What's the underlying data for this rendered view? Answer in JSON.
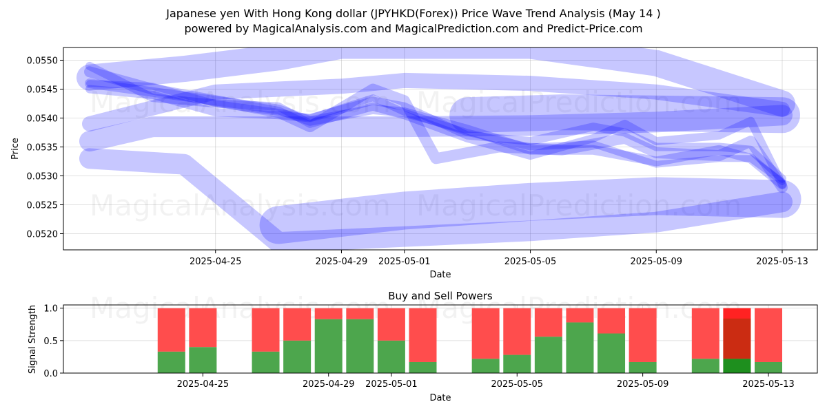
{
  "figure": {
    "title_line1": "Japanese yen With Hong Kong dollar (JPYHKD(Forex)) Price Wave Trend Analysis (May 14 )",
    "title_line2": "powered by MagicalAnalysis.com and MagicalPrediction.com and Predict-Price.com",
    "watermarks": [
      "MagicalAnalysis.com",
      "MagicalPrediction.com"
    ]
  },
  "chart_data": [
    {
      "type": "line",
      "name": "price-wave-chart",
      "xlabel": "Date",
      "ylabel": "Price",
      "xlim": [
        "2025-04-21",
        "2025-05-13"
      ],
      "ylim": [
        0.05172,
        0.05522
      ],
      "x_ticks": [
        "2025-04-25",
        "2025-04-29",
        "2025-05-01",
        "2025-05-05",
        "2025-05-09",
        "2025-05-13"
      ],
      "y_ticks": [
        "0.0520",
        "0.0525",
        "0.0530",
        "0.0535",
        "0.0540",
        "0.0545",
        "0.0550"
      ],
      "grid": true,
      "band_color": "#0000ff",
      "bands": [
        {
          "width": 30,
          "points": [
            [
              "2025-04-21",
              0.0536
            ],
            [
              "2025-04-23",
              0.05385
            ],
            [
              "2025-04-27",
              0.05385
            ],
            [
              "2025-05-01",
              0.05385
            ],
            [
              "2025-05-05",
              0.05387
            ],
            [
              "2025-05-09",
              0.05393
            ],
            [
              "2025-05-13",
              0.05405
            ]
          ]
        },
        {
          "width": 22,
          "points": [
            [
              "2025-04-21",
              0.0539
            ],
            [
              "2025-04-25",
              0.05445
            ],
            [
              "2025-04-29",
              0.05455
            ],
            [
              "2025-05-01",
              0.05465
            ],
            [
              "2025-05-05",
              0.0546
            ],
            [
              "2025-05-09",
              0.05445
            ],
            [
              "2025-05-13",
              0.05415
            ]
          ]
        },
        {
          "width": 38,
          "points": [
            [
              "2025-04-21",
              0.0547
            ],
            [
              "2025-04-24",
              0.05485
            ],
            [
              "2025-04-27",
              0.05505
            ],
            [
              "2025-04-29",
              0.05525
            ],
            [
              "2025-05-01",
              0.05525
            ],
            [
              "2025-05-05",
              0.05525
            ],
            [
              "2025-05-09",
              0.05495
            ],
            [
              "2025-05-13",
              0.05425
            ]
          ]
        },
        {
          "width": 30,
          "points": [
            [
              "2025-04-21",
              0.0533
            ],
            [
              "2025-04-24",
              0.0532
            ],
            [
              "2025-04-27",
              0.05185
            ],
            [
              "2025-04-29",
              0.0519
            ],
            [
              "2025-05-01",
              0.05195
            ],
            [
              "2025-05-05",
              0.05205
            ],
            [
              "2025-05-09",
              0.0522
            ],
            [
              "2025-05-13",
              0.05255
            ]
          ]
        },
        {
          "width": 55,
          "points": [
            [
              "2025-04-27",
              0.05215
            ],
            [
              "2025-05-01",
              0.0524
            ],
            [
              "2025-05-05",
              0.05255
            ],
            [
              "2025-05-09",
              0.05265
            ],
            [
              "2025-05-13",
              0.0526
            ]
          ]
        },
        {
          "width": 52,
          "points": [
            [
              "2025-05-03",
              0.05405
            ],
            [
              "2025-05-06",
              0.0541
            ],
            [
              "2025-05-09",
              0.05408
            ],
            [
              "2025-05-13",
              0.05405
            ]
          ]
        },
        {
          "width": 14,
          "points": [
            [
              "2025-04-21",
              0.0546
            ],
            [
              "2025-04-23",
              0.05445
            ],
            [
              "2025-04-25",
              0.0543
            ],
            [
              "2025-04-27",
              0.05415
            ],
            [
              "2025-04-28",
              0.05395
            ],
            [
              "2025-04-30",
              0.05415
            ],
            [
              "2025-05-01",
              0.0541
            ],
            [
              "2025-05-03",
              0.0538
            ],
            [
              "2025-05-05",
              0.05345
            ],
            [
              "2025-05-07",
              0.05345
            ],
            [
              "2025-05-09",
              0.05325
            ],
            [
              "2025-05-11",
              0.05345
            ],
            [
              "2025-05-12",
              0.0533
            ],
            [
              "2025-05-13",
              0.05285
            ]
          ]
        },
        {
          "width": 12,
          "points": [
            [
              "2025-04-21",
              0.0549
            ],
            [
              "2025-04-23",
              0.05435
            ],
            [
              "2025-04-25",
              0.05425
            ],
            [
              "2025-04-27",
              0.0542
            ],
            [
              "2025-04-28",
              0.0539
            ],
            [
              "2025-04-30",
              0.0542
            ],
            [
              "2025-05-01",
              0.05405
            ],
            [
              "2025-05-03",
              0.05365
            ],
            [
              "2025-05-05",
              0.05335
            ],
            [
              "2025-05-07",
              0.05365
            ],
            [
              "2025-05-08",
              0.0539
            ],
            [
              "2025-05-09",
              0.0536
            ],
            [
              "2025-05-11",
              0.0537
            ],
            [
              "2025-05-12",
              0.05395
            ],
            [
              "2025-05-13",
              0.05285
            ]
          ]
        },
        {
          "width": 12,
          "points": [
            [
              "2025-04-21",
              0.0545
            ],
            [
              "2025-04-23",
              0.0544
            ],
            [
              "2025-04-25",
              0.0541
            ],
            [
              "2025-04-27",
              0.05405
            ],
            [
              "2025-04-28",
              0.054
            ],
            [
              "2025-04-30",
              0.0543
            ],
            [
              "2025-05-01",
              0.0542
            ],
            [
              "2025-05-03",
              0.0537
            ],
            [
              "2025-05-05",
              0.0536
            ],
            [
              "2025-05-07",
              0.05385
            ],
            [
              "2025-05-08",
              0.05375
            ],
            [
              "2025-05-09",
              0.0535
            ],
            [
              "2025-05-11",
              0.0535
            ],
            [
              "2025-05-12",
              0.05345
            ],
            [
              "2025-05-13",
              0.05295
            ]
          ]
        },
        {
          "width": 16,
          "points": [
            [
              "2025-04-21",
              0.0548
            ],
            [
              "2025-04-23",
              0.0545
            ],
            [
              "2025-04-25",
              0.0543
            ],
            [
              "2025-04-27",
              0.0541
            ],
            [
              "2025-04-28",
              0.05385
            ],
            [
              "2025-04-30",
              0.0545
            ],
            [
              "2025-05-01",
              0.0543
            ],
            [
              "2025-05-02",
              0.0533
            ],
            [
              "2025-05-04",
              0.0535
            ],
            [
              "2025-05-06",
              0.05345
            ],
            [
              "2025-05-08",
              0.05365
            ],
            [
              "2025-05-09",
              0.0534
            ],
            [
              "2025-05-11",
              0.05335
            ],
            [
              "2025-05-12",
              0.0536
            ],
            [
              "2025-05-13",
              0.0528
            ]
          ]
        },
        {
          "width": 10,
          "points": [
            [
              "2025-04-21",
              0.0546
            ],
            [
              "2025-04-23",
              0.05455
            ],
            [
              "2025-04-25",
              0.05425
            ],
            [
              "2025-04-27",
              0.0541
            ],
            [
              "2025-04-28",
              0.054
            ],
            [
              "2025-04-30",
              0.05435
            ],
            [
              "2025-05-01",
              0.0541
            ],
            [
              "2025-05-03",
              0.05375
            ],
            [
              "2025-05-05",
              0.0535
            ],
            [
              "2025-05-07",
              0.05355
            ],
            [
              "2025-05-09",
              0.0532
            ],
            [
              "2025-05-11",
              0.0533
            ],
            [
              "2025-05-12",
              0.0533
            ],
            [
              "2025-05-13",
              0.0529
            ]
          ]
        }
      ]
    },
    {
      "type": "bar",
      "name": "buy-sell-powers",
      "title": "Buy and Sell Powers",
      "xlabel": "Date",
      "ylabel": "Signal Strength",
      "xlim": [
        "2025-04-21",
        "2025-05-13"
      ],
      "ylim": [
        0,
        1.05
      ],
      "x_ticks": [
        "2025-04-25",
        "2025-04-29",
        "2025-05-01",
        "2025-05-05",
        "2025-05-09",
        "2025-05-13"
      ],
      "y_ticks": [
        "0.0",
        "0.5",
        "1.0"
      ],
      "grid": true,
      "buy_color": "#4da64d",
      "sell_color": "#ff4d4d",
      "series": [
        {
          "name": "Buy"
        },
        {
          "name": "Sell"
        }
      ],
      "bars": [
        {
          "date": "2025-04-24",
          "buy": 0.33
        },
        {
          "date": "2025-04-25",
          "buy": 0.4
        },
        {
          "date": "2025-04-27",
          "buy": 0.33
        },
        {
          "date": "2025-04-28",
          "buy": 0.5
        },
        {
          "date": "2025-04-29",
          "buy": 0.83
        },
        {
          "date": "2025-04-30",
          "buy": 0.83
        },
        {
          "date": "2025-05-01",
          "buy": 0.5
        },
        {
          "date": "2025-05-02",
          "buy": 0.17
        },
        {
          "date": "2025-05-04",
          "buy": 0.22
        },
        {
          "date": "2025-05-05",
          "buy": 0.28
        },
        {
          "date": "2025-05-06",
          "buy": 0.56
        },
        {
          "date": "2025-05-07",
          "buy": 0.78
        },
        {
          "date": "2025-05-08",
          "buy": 0.61
        },
        {
          "date": "2025-05-09",
          "buy": 0.17
        },
        {
          "date": "2025-05-11",
          "buy": 0.22
        },
        {
          "date": "2025-05-12",
          "buy": 0.22,
          "highlight": true
        },
        {
          "date": "2025-05-13",
          "buy": 0.17
        }
      ]
    }
  ]
}
